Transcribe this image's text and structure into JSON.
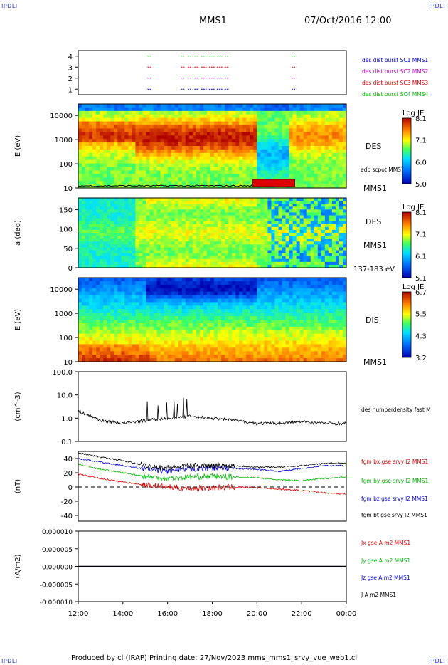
{
  "corners": {
    "tl": "IPDLI",
    "tr": "IPDLI",
    "bl": "IPDLI",
    "br": "IPDLI"
  },
  "header": {
    "title": "MMS1",
    "date": "07/Oct/2016 12:00"
  },
  "footer": {
    "text": "Produced by cl (IRAP)   Printing date: 27/Nov/2023   mms_mms1_srvy_vue_web1.cl"
  },
  "colors": {
    "red": "#dd0000",
    "green": "#00bb00",
    "blue": "#0000cc",
    "magenta": "#cc00cc",
    "black": "#000000"
  },
  "x_ticks": [
    "12:00",
    "14:00",
    "16:00",
    "18:00",
    "20:00",
    "22:00",
    "00:00"
  ],
  "chart_data": [
    {
      "type": "scatter",
      "name": "burst-availability",
      "ylim": [
        0.5,
        4.5
      ],
      "y_ticks": [
        "1",
        "2",
        "3",
        "4"
      ],
      "legend": [
        {
          "label": "des dist burst SC1 MMS1",
          "color": "#0000cc"
        },
        {
          "label": "des dist burst SC2 MMS2",
          "color": "#cc00cc"
        },
        {
          "label": "des dist burst SC3 MMS3",
          "color": "#dd0000"
        },
        {
          "label": "des dist burst SC4 MMS4",
          "color": "#00bb00"
        }
      ],
      "intervals_hours": [
        [
          15.1,
          15.25
        ],
        [
          16.6,
          16.75
        ],
        [
          16.9,
          17.1
        ],
        [
          17.2,
          17.4
        ],
        [
          17.5,
          17.75
        ],
        [
          17.85,
          18.1
        ],
        [
          18.2,
          18.45
        ],
        [
          18.55,
          18.75
        ],
        [
          21.55,
          21.75
        ]
      ]
    },
    {
      "type": "heatmap",
      "name": "des-energy-spectrogram",
      "ylabel": "E (eV)",
      "yscale": "log",
      "ylim": [
        10,
        30000
      ],
      "y_ticks": [
        "10000",
        "1000",
        "100",
        "10"
      ],
      "right_label": "DES",
      "sat_label": "MMS1",
      "overlay_label": "edp scpot MMS1",
      "colorbar": {
        "title": "Log JE",
        "ticks": [
          "8.1",
          "7.1",
          "6.0",
          "5.0"
        ]
      }
    },
    {
      "type": "heatmap",
      "name": "des-pitch-angle",
      "ylabel": "a (deg)",
      "ylim": [
        0,
        180
      ],
      "y_ticks": [
        "150",
        "100",
        "50",
        "0"
      ],
      "right_label": "DES",
      "sat_label": "MMS1",
      "energy_label": "137-183 eV",
      "colorbar": {
        "title": "Log JE",
        "ticks": [
          "8.1",
          "7.1",
          "6.1",
          "5.1"
        ]
      }
    },
    {
      "type": "heatmap",
      "name": "dis-energy-spectrogram",
      "ylabel": "E (eV)",
      "yscale": "log",
      "ylim": [
        10,
        30000
      ],
      "y_ticks": [
        "10000",
        "1000",
        "100",
        "10"
      ],
      "right_label": "DIS",
      "sat_label": "MMS1",
      "colorbar": {
        "title": "Log JE",
        "ticks": [
          "6.7",
          "5.5",
          "4.3",
          "3.2"
        ]
      }
    },
    {
      "type": "line",
      "name": "density",
      "ylabel": "(cm^-3)",
      "yscale": "log",
      "ylim": [
        0.1,
        100
      ],
      "y_ticks": [
        "100.0",
        "10.0",
        "1.0",
        "0.1"
      ],
      "series": [
        {
          "name": "des numberdensity fast M",
          "color": "#000000",
          "x": [
            12.0,
            12.5,
            13.0,
            13.5,
            14.0,
            15.0,
            16.0,
            17.0,
            18.0,
            19.0,
            20.0,
            21.0,
            22.0,
            23.0,
            24.0
          ],
          "values": [
            2.0,
            1.3,
            0.8,
            0.7,
            0.6,
            0.8,
            1.0,
            1.2,
            1.0,
            0.8,
            0.6,
            0.6,
            0.7,
            0.6,
            0.6
          ]
        }
      ]
    },
    {
      "type": "line",
      "name": "magnetic-field",
      "ylabel": "(nT)",
      "ylim": [
        -48,
        50
      ],
      "y_ticks": [
        "40",
        "20",
        "0",
        "-20",
        "-40"
      ],
      "x": [
        12,
        13,
        14,
        15,
        16,
        17,
        18,
        19,
        20,
        21,
        22,
        23,
        24
      ],
      "series": [
        {
          "name": "fgm bx gse srvy l2 MMS1",
          "color": "#dd0000",
          "values": [
            18,
            12,
            7,
            3,
            0,
            -2,
            -1,
            0,
            -1,
            -3,
            -5,
            -8,
            -10
          ]
        },
        {
          "name": "fgm by gse srvy l2 MMS1",
          "color": "#00bb00",
          "values": [
            32,
            25,
            20,
            15,
            12,
            14,
            15,
            14,
            13,
            10,
            9,
            12,
            14
          ]
        },
        {
          "name": "fgm bz gse srvy l2 MMS1",
          "color": "#0000cc",
          "values": [
            40,
            35,
            30,
            25,
            22,
            25,
            27,
            26,
            25,
            22,
            26,
            30,
            30
          ]
        },
        {
          "name": "fgm bt gse srvy l2 MMS1",
          "color": "#000000",
          "values": [
            48,
            42,
            37,
            30,
            27,
            30,
            30,
            30,
            28,
            28,
            30,
            33,
            34
          ]
        }
      ]
    },
    {
      "type": "line",
      "name": "current-density",
      "ylabel": "(A/m2)",
      "ylim": [
        -0.0001,
        0.0001
      ],
      "y_ticks": [
        "0.000010",
        "0.000005",
        "0.000000",
        "-0.000005",
        "-0.000010"
      ],
      "x": [
        12,
        24
      ],
      "series": [
        {
          "name": "Jx gse A m2 MMS1",
          "color": "#dd0000",
          "values": [
            0,
            0
          ]
        },
        {
          "name": "Jy gse A m2 MMS1",
          "color": "#00bb00",
          "values": [
            0,
            0
          ]
        },
        {
          "name": "Jz gse A m2 MMS1",
          "color": "#0000cc",
          "values": [
            0,
            0
          ]
        },
        {
          "name": "J A m2 MMS1",
          "color": "#000000",
          "values": [
            0,
            0
          ]
        }
      ]
    }
  ]
}
